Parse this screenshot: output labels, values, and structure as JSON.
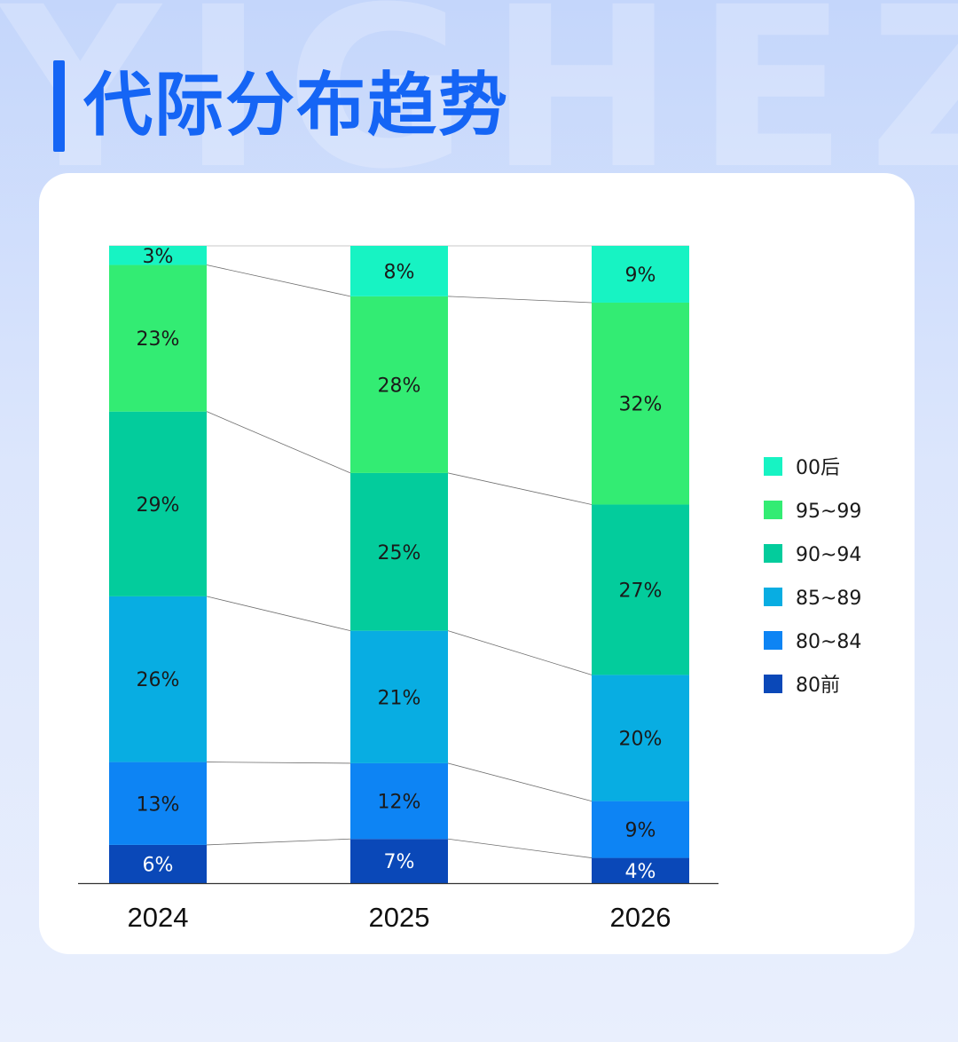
{
  "header": {
    "title": "代际分布趋势",
    "watermark": "YIGHEZ"
  },
  "chart_data": {
    "type": "bar",
    "stacked": true,
    "percent": true,
    "categories": [
      "2024",
      "2025",
      "2026"
    ],
    "series": [
      {
        "name": "80前",
        "color": "#0a48b8",
        "label_color": "#ffffff",
        "values": [
          6,
          7,
          4
        ]
      },
      {
        "name": "80~84",
        "color": "#0d84f4",
        "label_color": "#1a1a1a",
        "values": [
          13,
          12,
          9
        ]
      },
      {
        "name": "85~89",
        "color": "#08ade2",
        "label_color": "#1a1a1a",
        "values": [
          26,
          21,
          20
        ]
      },
      {
        "name": "90~94",
        "color": "#03cc9c",
        "label_color": "#1a1a1a",
        "values": [
          29,
          25,
          27
        ]
      },
      {
        "name": "95~99",
        "color": "#33ec73",
        "label_color": "#1a1a1a",
        "values": [
          23,
          28,
          32
        ]
      },
      {
        "name": "00后",
        "color": "#17f3c3",
        "label_color": "#1a1a1a",
        "values": [
          3,
          8,
          9
        ]
      }
    ],
    "legend_position": "right",
    "grid": false,
    "connector_lines": true
  }
}
